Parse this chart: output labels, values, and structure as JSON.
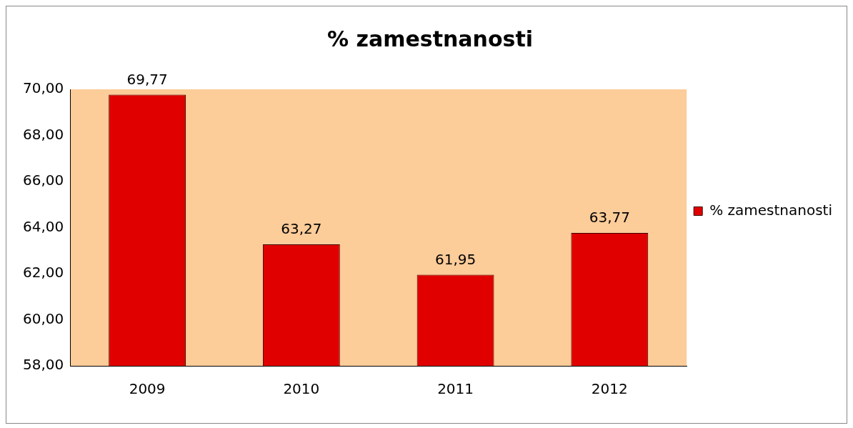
{
  "chart_data": {
    "type": "bar",
    "title": "% zamestnanosti",
    "categories": [
      "2009",
      "2010",
      "2011",
      "2012"
    ],
    "series": [
      {
        "name": "% zamestnanosti",
        "color": "#e00000",
        "values": [
          69.77,
          63.27,
          61.95,
          63.77
        ],
        "value_labels": [
          "69,77",
          "63,27",
          "61,95",
          "63,77"
        ]
      }
    ],
    "ylim": [
      58,
      70
    ],
    "yticks": [
      {
        "value": 58,
        "label": "58,00"
      },
      {
        "value": 60,
        "label": "60,00"
      },
      {
        "value": 62,
        "label": "62,00"
      },
      {
        "value": 64,
        "label": "64,00"
      },
      {
        "value": 66,
        "label": "66,00"
      },
      {
        "value": 68,
        "label": "68,00"
      },
      {
        "value": 70,
        "label": "70,00"
      }
    ],
    "grid": false,
    "legend": "right"
  }
}
